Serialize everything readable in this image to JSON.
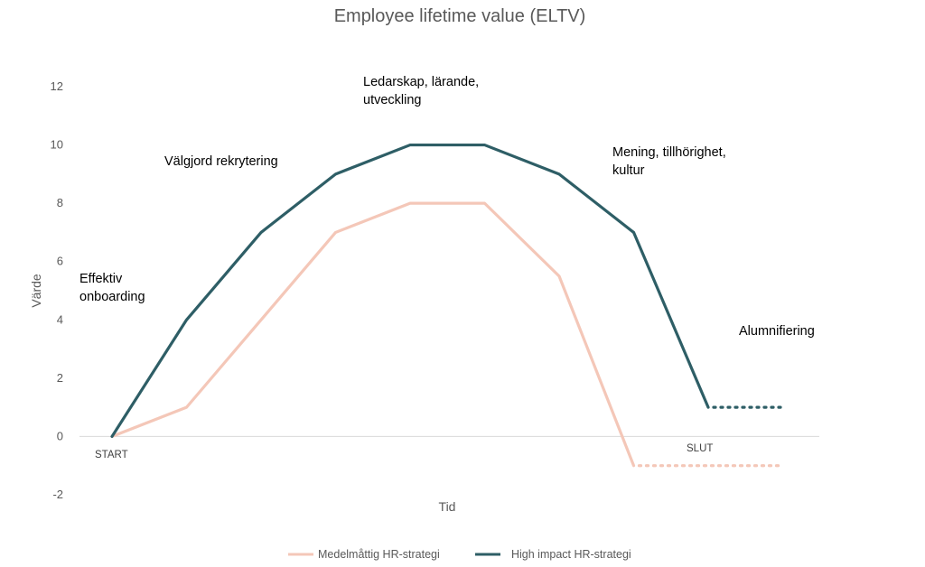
{
  "chart_data": {
    "type": "line",
    "title": "Employee lifetime value (ELTV)",
    "xlabel": "Tid",
    "ylabel": "Värde",
    "ylim": [
      -2,
      12
    ],
    "yticks": [
      -2,
      0,
      2,
      4,
      6,
      8,
      10,
      12
    ],
    "grid": false,
    "legend_position": "bottom",
    "x": [
      0,
      1,
      2,
      3,
      4,
      5,
      6,
      7,
      8,
      9
    ],
    "series": [
      {
        "name": "Medelmåttig HR-strategi",
        "color": "#F4C7B8",
        "values": [
          0,
          1,
          4,
          7,
          8,
          8,
          5.5,
          -1,
          null,
          null
        ],
        "dotted_extension": {
          "from_x": 7,
          "to_x": 9,
          "value": -1
        }
      },
      {
        "name": "High impact HR-strategi",
        "color": "#2E5E66",
        "values": [
          0,
          4,
          7,
          9,
          10,
          10,
          9,
          7,
          1,
          null
        ],
        "dotted_extension": {
          "from_x": 8,
          "to_x": 9,
          "value": 1
        }
      }
    ],
    "annotations": [
      {
        "lines": [
          "Effektiv",
          "onboarding"
        ]
      },
      {
        "lines": [
          "Välgjord rekrytering"
        ]
      },
      {
        "lines": [
          "Ledarskap, lärande,",
          "utveckling"
        ]
      },
      {
        "lines": [
          "Mening, tillhörighet,",
          "kultur"
        ]
      },
      {
        "lines": [
          "Alumnifiering"
        ]
      }
    ],
    "start_label": "START",
    "end_label": "SLUT"
  }
}
